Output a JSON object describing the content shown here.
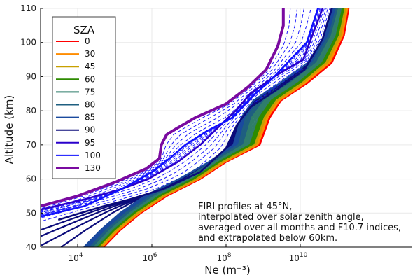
{
  "chart_data": {
    "type": "line",
    "xlabel": "Ne (m⁻³)",
    "ylabel": "Altitude (km)",
    "x_scale": "log",
    "xlim": [
      1000,
      10000000000000
    ],
    "ylim": [
      40,
      110
    ],
    "x_ticks": [
      {
        "value": 10000,
        "label": "10",
        "exp": "4"
      },
      {
        "value": 1000000,
        "label": "10",
        "exp": "6"
      },
      {
        "value": 100000000,
        "label": "10",
        "exp": "8"
      },
      {
        "value": 10000000000,
        "label": "10",
        "exp": "10"
      }
    ],
    "y_ticks": [
      40,
      50,
      60,
      70,
      80,
      90,
      100,
      110
    ],
    "grid": true,
    "legend": {
      "title": "SZA",
      "placement": "top-left"
    },
    "annotation": [
      "FIRI profiles at 45°N,",
      "interpolated over solar zenith angle,",
      "averaged over all months and F10.7 indices,",
      "and extrapolated below 60km."
    ],
    "series": [
      {
        "name": "0",
        "color": "#ff0000",
        "x": [
          50000,
          140000,
          500000,
          2500000,
          20000000,
          100000000,
          800000000,
          1500000000,
          3000000000,
          15000000000,
          70000000000,
          150000000000,
          200000000000
        ],
        "y": [
          40,
          45,
          50,
          55,
          60,
          65,
          70,
          78,
          83,
          88,
          94,
          102,
          110
        ]
      },
      {
        "name": "30",
        "color": "#ff8c00",
        "x": [
          45000,
          125000,
          450000,
          2200000,
          18000000,
          90000000,
          700000000,
          1300000000,
          2700000000,
          13000000000,
          60000000000,
          135000000000,
          185000000000
        ],
        "y": [
          40,
          45,
          50,
          55,
          60,
          65,
          70,
          78,
          83,
          88,
          94,
          102,
          110
        ]
      },
      {
        "name": "45",
        "color": "#c8a000",
        "x": [
          40000,
          110000,
          400000,
          2000000,
          16000000,
          80000000,
          600000000,
          1100000000,
          2300000000,
          11000000000,
          50000000000,
          115000000000,
          165000000000
        ],
        "y": [
          40,
          45,
          50,
          55,
          60,
          65,
          70,
          78,
          83,
          88,
          94,
          102,
          110
        ]
      },
      {
        "name": "60",
        "color": "#2e8b00",
        "x": [
          35000,
          95000,
          330000,
          1600000,
          13000000,
          65000000,
          450000000,
          800000000,
          1700000000,
          8500000000,
          40000000000,
          95000000000,
          140000000000
        ],
        "y": [
          40,
          45,
          50,
          55,
          60,
          65,
          70,
          78,
          83,
          88,
          94,
          102,
          110
        ]
      },
      {
        "name": "75",
        "color": "#2f7d6b",
        "x": [
          28000,
          75000,
          260000,
          1200000,
          10000000,
          50000000,
          300000000,
          500000000,
          1100000000,
          5500000000,
          28000000000,
          70000000000,
          110000000000
        ],
        "y": [
          40,
          45,
          50,
          55,
          60,
          65,
          70,
          78,
          83,
          88,
          94,
          102,
          110
        ]
      },
      {
        "name": "80",
        "color": "#1f5f80",
        "x": [
          22000,
          60000,
          200000,
          950000,
          8000000,
          42000000,
          220000000,
          350000000,
          800000000,
          4000000000,
          22000000000,
          60000000000,
          95000000000
        ],
        "y": [
          40,
          45,
          50,
          55,
          60,
          65,
          70,
          78,
          83,
          88,
          94,
          102,
          110
        ]
      },
      {
        "name": "85",
        "color": "#1a4a9e",
        "x": [
          15000,
          42000,
          140000,
          650000,
          5500000,
          35000000,
          160000000,
          260000000,
          550000000,
          2800000000,
          16000000000,
          48000000000,
          80000000000
        ],
        "y": [
          40,
          45,
          50,
          55,
          60,
          65,
          70,
          78,
          83,
          88,
          94,
          102,
          110
        ]
      },
      {
        "name": "90",
        "color": "#0b0b7a",
        "x": [
          3000,
          12000,
          50000,
          250000,
          2000000,
          20000000,
          100000000,
          200000000,
          450000000,
          2200000000,
          13000000000,
          40000000000,
          70000000000
        ],
        "y": [
          48,
          50,
          52,
          54,
          57,
          62,
          69,
          76,
          81,
          86,
          92,
          101,
          110
        ]
      },
      {
        "name": "95",
        "color": "#2a00cc",
        "x": [
          1000,
          15000,
          150000,
          800000,
          5000000,
          20000000,
          60000000,
          180000000,
          450000000,
          2000000000,
          12000000000,
          40000000000
        ],
        "y": [
          51,
          54,
          57,
          60,
          65,
          70,
          75,
          80,
          85,
          90,
          95,
          110
        ]
      },
      {
        "name": "100",
        "color": "#1010ff",
        "x": [
          1000,
          15000,
          150000,
          1000000,
          3000000,
          8000000,
          30000000,
          150000000,
          500000000,
          2000000000,
          15000000000,
          30000000000
        ],
        "y": [
          49,
          52,
          57,
          62,
          66,
          70,
          74,
          78,
          84,
          90,
          100,
          110
        ]
      },
      {
        "name": "130",
        "color": "#7a0aa0",
        "x": [
          1000,
          10000,
          100000,
          700000,
          1600000,
          1800000,
          2500000,
          5000000,
          15000000,
          100000000,
          400000000,
          1200000000,
          2500000000,
          3500000000,
          3500000000
        ],
        "y": [
          52,
          55,
          59,
          63,
          66,
          70,
          73,
          75,
          78,
          82,
          87,
          92,
          99,
          105,
          110
        ]
      }
    ]
  }
}
